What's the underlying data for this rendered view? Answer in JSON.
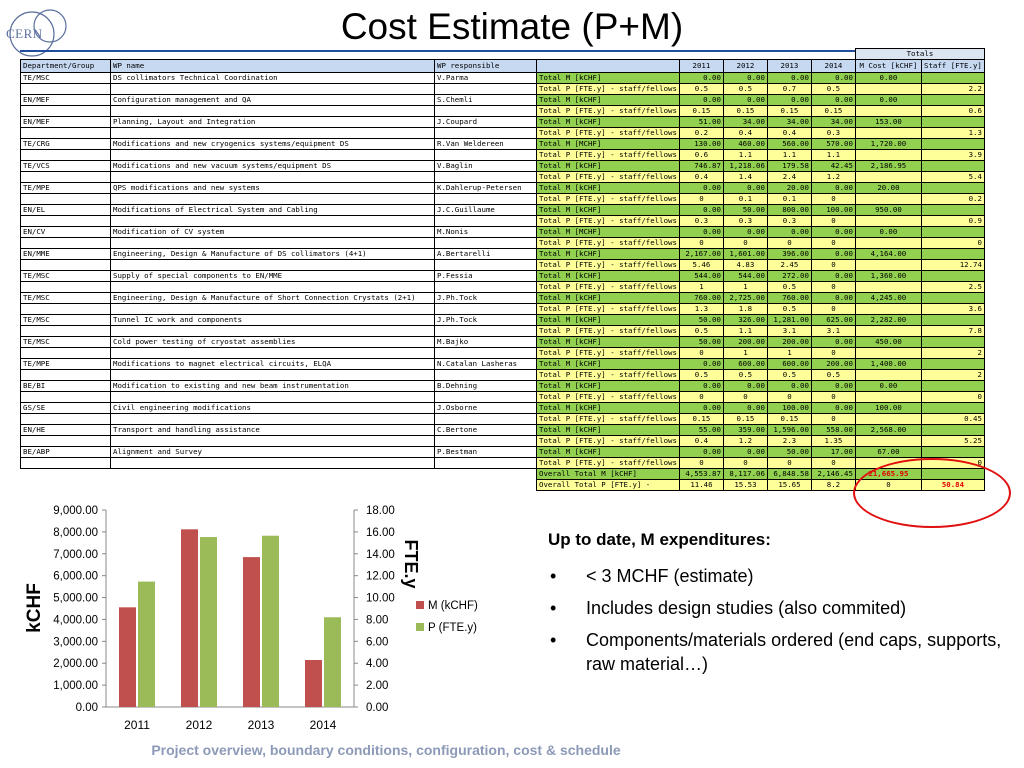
{
  "title": "Cost Estimate (P+M)",
  "logo": {
    "text": "CERN"
  },
  "table": {
    "totals_label": "Totals",
    "headers": [
      "Department/Group",
      "WP name",
      "WP responsible",
      "",
      "2011",
      "2012",
      "2013",
      "2014",
      "M Cost [kCHF]",
      "Staff [FTE.y]"
    ],
    "rows": [
      {
        "dept": "TE/MSC",
        "wp": "DS collimators Technical Coordination",
        "resp": "V.Parma",
        "m": {
          "label": "Total M [kCHF]",
          "vals": [
            "0.00",
            "0.00",
            "0.00",
            "0.00"
          ],
          "tot": "0.00",
          "staff": ""
        },
        "p": {
          "label": "Total P [FTE.y] - staff/fellows",
          "vals": [
            "0.5",
            "0.5",
            "0.7",
            "0.5"
          ],
          "tot": "",
          "staff": "2.2"
        }
      },
      {
        "dept": "EN/MEF",
        "wp": "Configuration management and QA",
        "resp": "S.Chemli",
        "m": {
          "label": "Total M [kCHF]",
          "vals": [
            "0.00",
            "0.00",
            "0.00",
            "0.00"
          ],
          "tot": "0.00",
          "staff": ""
        },
        "p": {
          "label": "Total P [FTE.y] - staff/fellows",
          "vals": [
            "0.15",
            "0.15",
            "0.15",
            "0.15"
          ],
          "tot": "",
          "staff": "0.6"
        }
      },
      {
        "dept": "EN/MEF",
        "wp": "Planning, Layout and Integration",
        "resp": "J.Coupard",
        "m": {
          "label": "Total M [kCHF]",
          "vals": [
            "51.00",
            "34.00",
            "34.00",
            "34.00"
          ],
          "tot": "153.00",
          "staff": ""
        },
        "p": {
          "label": "Total P [FTE.y] - staff/fellows",
          "vals": [
            "0.2",
            "0.4",
            "0.4",
            "0.3"
          ],
          "tot": "",
          "staff": "1.3"
        }
      },
      {
        "dept": "TE/CRG",
        "wp": "Modifications and new cryogenics systems/equipment DS",
        "resp": "R.Van Weldereen",
        "m": {
          "label": "Total M [MCHF]",
          "vals": [
            "130.00",
            "460.00",
            "560.00",
            "570.00"
          ],
          "tot": "1,720.00",
          "staff": ""
        },
        "p": {
          "label": "Total P [FTE.y] - staff/fellows",
          "vals": [
            "0.6",
            "1.1",
            "1.1",
            "1.1"
          ],
          "tot": "",
          "staff": "3.9"
        }
      },
      {
        "dept": "TE/VCS",
        "wp": "Modifications and new vacuum systems/equipment DS",
        "resp": "V.Baglin",
        "m": {
          "label": "Total M [kCHF]",
          "vals": [
            "746.87",
            "1,218.06",
            "179.58",
            "42.45"
          ],
          "tot": "2,186.95",
          "staff": ""
        },
        "p": {
          "label": "Total P [FTE.y] - staff/fellows",
          "vals": [
            "0.4",
            "1.4",
            "2.4",
            "1.2"
          ],
          "tot": "",
          "staff": "5.4"
        }
      },
      {
        "dept": "TE/MPE",
        "wp": "QPS modifications and new systems",
        "resp": "K.Dahlerup-Petersen",
        "m": {
          "label": "Total M [kCHF]",
          "vals": [
            "0.00",
            "0.00",
            "20.00",
            "0.00"
          ],
          "tot": "20.00",
          "staff": ""
        },
        "p": {
          "label": "Total P [FTE.y] - staff/fellows",
          "vals": [
            "0",
            "0.1",
            "0.1",
            "0"
          ],
          "tot": "",
          "staff": "0.2"
        }
      },
      {
        "dept": "EN/EL",
        "wp": "Modifications of Electrical System and Cabling",
        "resp": "J.C.Guillaume",
        "m": {
          "label": "Total M [kCHF]",
          "vals": [
            "0.00",
            "50.00",
            "800.00",
            "100.00"
          ],
          "tot": "950.00",
          "staff": ""
        },
        "p": {
          "label": "Total P [FTE.y] - staff/fellows",
          "vals": [
            "0.3",
            "0.3",
            "0.3",
            "0"
          ],
          "tot": "",
          "staff": "0.9"
        }
      },
      {
        "dept": "EN/CV",
        "wp": "Modification of CV system",
        "resp": "M.Nonis",
        "m": {
          "label": "Total M [MCHF]",
          "vals": [
            "0.00",
            "0.00",
            "0.00",
            "0.00"
          ],
          "tot": "0.00",
          "staff": ""
        },
        "p": {
          "label": "Total P [FTE.y] - staff/fellows",
          "vals": [
            "0",
            "0",
            "0",
            "0"
          ],
          "tot": "",
          "staff": "0"
        }
      },
      {
        "dept": "EN/MME",
        "wp": "Engineering, Design & Manufacture of DS collimators (4+1)",
        "resp": "A.Bertarelli",
        "m": {
          "label": "Total M [kCHF]",
          "vals": [
            "2,167.00",
            "1,601.00",
            "396.00",
            "0.00"
          ],
          "tot": "4,164.00",
          "staff": ""
        },
        "p": {
          "label": "Total P [FTE.y] - staff/fellows",
          "vals": [
            "5.46",
            "4.83",
            "2.45",
            "0"
          ],
          "tot": "",
          "staff": "12.74"
        }
      },
      {
        "dept": "TE/MSC",
        "wp": "Supply of special components to EN/MME",
        "resp": "P.Fessia",
        "m": {
          "label": "Total M [kCHF]",
          "vals": [
            "544.00",
            "544.00",
            "272.00",
            "0.00"
          ],
          "tot": "1,360.00",
          "staff": ""
        },
        "p": {
          "label": "Total P [FTE.y] - staff/fellows",
          "vals": [
            "1",
            "1",
            "0.5",
            "0"
          ],
          "tot": "",
          "staff": "2.5"
        }
      },
      {
        "dept": "TE/MSC",
        "wp": "Engineering, Design & Manufacture of Short Connection Crystats (2+1)",
        "resp": "J.Ph.Tock",
        "m": {
          "label": "Total M [kCHF]",
          "vals": [
            "760.00",
            "2,725.00",
            "760.00",
            "0.00"
          ],
          "tot": "4,245.00",
          "staff": ""
        },
        "p": {
          "label": "Total P [FTE.y] - staff/fellows",
          "vals": [
            "1.3",
            "1.8",
            "0.5",
            "0"
          ],
          "tot": "",
          "staff": "3.6"
        }
      },
      {
        "dept": "TE/MSC",
        "wp": "Tunnel IC work and components",
        "resp": "J.Ph.Tock",
        "m": {
          "label": "Total M [kCHF]",
          "vals": [
            "50.00",
            "326.00",
            "1,281.00",
            "625.00"
          ],
          "tot": "2,282.00",
          "staff": ""
        },
        "p": {
          "label": "Total P [FTE.y] - staff/fellows",
          "vals": [
            "0.5",
            "1.1",
            "3.1",
            "3.1"
          ],
          "tot": "",
          "staff": "7.8"
        }
      },
      {
        "dept": "TE/MSC",
        "wp": "Cold power testing of cryostat assemblies",
        "resp": "M.Bajko",
        "m": {
          "label": "Total M [kCHF]",
          "vals": [
            "50.00",
            "200.00",
            "200.00",
            "0.00"
          ],
          "tot": "450.00",
          "staff": ""
        },
        "p": {
          "label": "Total P [FTE.y] - staff/fellows",
          "vals": [
            "0",
            "1",
            "1",
            "0"
          ],
          "tot": "",
          "staff": "2"
        }
      },
      {
        "dept": "TE/MPE",
        "wp": "Modifications to magnet electrical circuits, ELQA",
        "resp": "N.Catalan Lasheras",
        "m": {
          "label": "Total M [kCHF]",
          "vals": [
            "0.00",
            "600.00",
            "600.00",
            "200.00"
          ],
          "tot": "1,400.00",
          "staff": ""
        },
        "p": {
          "label": "Total P [FTE.y] - staff/fellows",
          "vals": [
            "0.5",
            "0.5",
            "0.5",
            "0.5"
          ],
          "tot": "",
          "staff": "2"
        }
      },
      {
        "dept": "BE/BI",
        "wp": "Modification to existing and new beam instrumentation",
        "resp": "B.Dehning",
        "m": {
          "label": "Total M [kCHF]",
          "vals": [
            "0.00",
            "0.00",
            "0.00",
            "0.00"
          ],
          "tot": "0.00",
          "staff": ""
        },
        "p": {
          "label": "Total P [FTE.y] - staff/fellows",
          "vals": [
            "0",
            "0",
            "0",
            "0"
          ],
          "tot": "",
          "staff": "0"
        }
      },
      {
        "dept": "GS/SE",
        "wp": "Civil engineering modifications",
        "resp": "J.Osborne",
        "m": {
          "label": "Total M [kCHF]",
          "vals": [
            "0.00",
            "0.00",
            "100.00",
            "0.00"
          ],
          "tot": "100.00",
          "staff": ""
        },
        "p": {
          "label": "Total P [FTE.y] - staff/fellows",
          "vals": [
            "0.15",
            "0.15",
            "0.15",
            "0"
          ],
          "tot": "",
          "staff": "0.45"
        }
      },
      {
        "dept": "EN/HE",
        "wp": "Transport and handling assistance",
        "resp": "C.Bertone",
        "m": {
          "label": "Total M [kCHF]",
          "vals": [
            "55.00",
            "359.00",
            "1,596.00",
            "558.00"
          ],
          "tot": "2,568.00",
          "staff": ""
        },
        "p": {
          "label": "Total P [FTE.y] - staff/fellows",
          "vals": [
            "0.4",
            "1.2",
            "2.3",
            "1.35"
          ],
          "tot": "",
          "staff": "5.25"
        }
      },
      {
        "dept": "BE/ABP",
        "wp": "Alignment and Survey",
        "resp": "P.Bestman",
        "m": {
          "label": "Total M [kCHF]",
          "vals": [
            "0.00",
            "0.00",
            "50.00",
            "17.00"
          ],
          "tot": "67.00",
          "staff": ""
        },
        "p": {
          "label": "Total P [FTE.y] - staff/fellows",
          "vals": [
            "0",
            "0",
            "0",
            "0"
          ],
          "tot": "",
          "staff": "0"
        }
      }
    ],
    "overall_m": {
      "label": "Overall Total M [kCHF]",
      "vals": [
        "4,553.87",
        "8,117.06",
        "6,848.58",
        "2,146.45"
      ],
      "tot": "21,665.95",
      "staff": ""
    },
    "overall_p": {
      "label": "Overall Total P [FTE.y] -",
      "vals": [
        "11.46",
        "15.53",
        "15.65",
        "8.2"
      ],
      "tot": "0",
      "staff": "50.84"
    }
  },
  "chart_data": {
    "type": "bar",
    "categories": [
      "2011",
      "2012",
      "2013",
      "2014"
    ],
    "series": [
      {
        "name": "M (kCHF)",
        "axis": "left",
        "color": "#c0504d",
        "values": [
          4553.87,
          8117.06,
          6848.58,
          2146.45
        ]
      },
      {
        "name": "P (FTE.y)",
        "axis": "right",
        "color": "#9bbb59",
        "values": [
          11.46,
          15.53,
          15.65,
          8.2
        ]
      }
    ],
    "ylabel": "kCHF",
    "y2label": "FTE.y",
    "ylim": [
      0,
      9000
    ],
    "y2lim": [
      0,
      18
    ],
    "yticks": [
      "0.00",
      "1,000.00",
      "2,000.00",
      "3,000.00",
      "4,000.00",
      "5,000.00",
      "6,000.00",
      "7,000.00",
      "8,000.00",
      "9,000.00"
    ],
    "y2ticks": [
      "0.00",
      "2.00",
      "4.00",
      "6.00",
      "8.00",
      "10.00",
      "12.00",
      "14.00",
      "16.00",
      "18.00"
    ],
    "legend": "right",
    "grid": false
  },
  "notes": {
    "heading": "Up to date, M expenditures:",
    "bullet_symbol": "•",
    "items": [
      "< 3 MCHF (estimate)",
      "Includes design studies (also commited)",
      "Components/materials ordered (end caps, supports, raw material…)"
    ]
  },
  "footer": "Project overview, boundary conditions, configuration, cost & schedule"
}
